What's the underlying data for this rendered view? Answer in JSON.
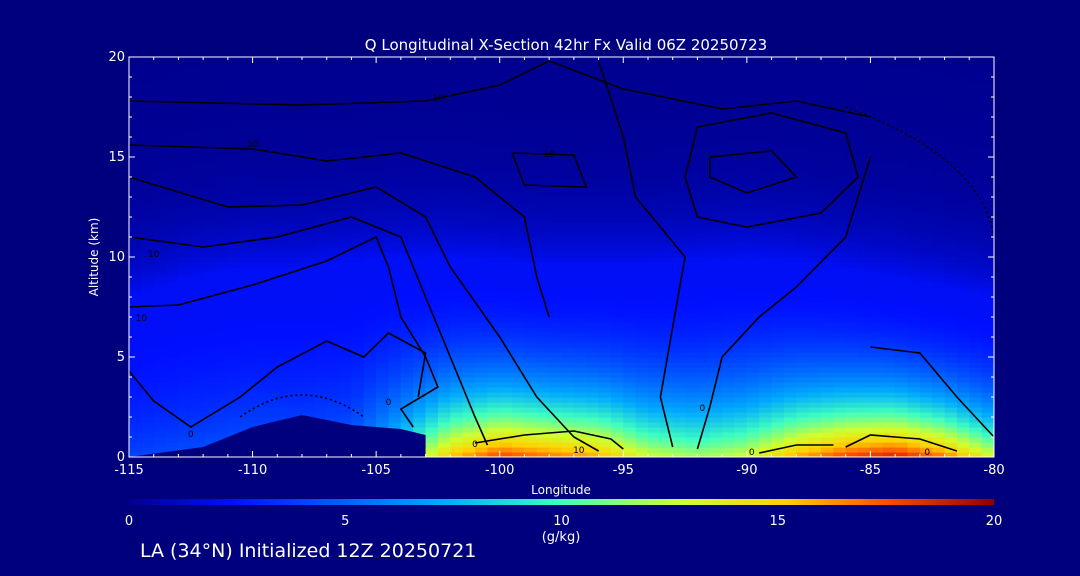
{
  "chart_data": {
    "type": "heatmap",
    "title": "Q Longitudinal X-Section 42hr  Fx Valid 06Z 20250723",
    "xlabel": "Longitude",
    "ylabel": "Altitude (km)",
    "xlim": [
      -115,
      -80
    ],
    "ylim": [
      0,
      20
    ],
    "x_ticks": [
      "-115",
      "-110",
      "-105",
      "-100",
      "-95",
      "-90",
      "-85",
      "-80"
    ],
    "y_ticks": [
      "0",
      "5",
      "10",
      "15",
      "20"
    ],
    "field": "specific humidity (filled) with relative-humidity-style contour lines",
    "max_q_by_longitude": {
      "x": [
        -115,
        -112.5,
        -110,
        -108,
        -106,
        -104,
        -102,
        -100,
        -98,
        -96,
        -94,
        -92,
        -90,
        -88,
        -86,
        -84,
        -82,
        -80
      ],
      "q_surface": [
        4,
        4.5,
        5,
        5,
        5.5,
        10,
        15.5,
        18,
        17,
        16,
        13,
        12,
        13,
        16,
        18,
        19,
        17,
        13
      ],
      "moist_layer_top_km": [
        8,
        9,
        9.5,
        9.5,
        9.8,
        10,
        10,
        9.8,
        9.6,
        9.6,
        9.6,
        9.8,
        10,
        9.8,
        9.4,
        9,
        8.5,
        8
      ]
    },
    "terrain_km": {
      "x": [
        -115,
        -112,
        -110,
        -108,
        -106,
        -104,
        -103
      ],
      "z": [
        0,
        0.5,
        1.5,
        2.1,
        1.6,
        1.4,
        1.1
      ]
    },
    "contour_labels": [
      {
        "text": "10",
        "x": -102.5,
        "y": 17.8
      },
      {
        "text": "10",
        "x": -110,
        "y": 15.5
      },
      {
        "text": "10",
        "x": -98,
        "y": 15
      },
      {
        "text": "10",
        "x": -114,
        "y": 10
      },
      {
        "text": "10",
        "x": -114.5,
        "y": 6.8
      },
      {
        "text": "0",
        "x": -104.5,
        "y": 2.6
      },
      {
        "text": "0",
        "x": -112.5,
        "y": 1
      },
      {
        "text": "0",
        "x": -101,
        "y": 0.5
      },
      {
        "text": "10",
        "x": -96.8,
        "y": 0.2
      },
      {
        "text": "0",
        "x": -91.8,
        "y": 2.3
      },
      {
        "text": "0",
        "x": -89.8,
        "y": 0.1
      },
      {
        "text": "0",
        "x": -82.7,
        "y": 0.1
      }
    ],
    "colorbar": {
      "ticks": [
        "0",
        "5",
        "10",
        "15",
        "20"
      ],
      "label": "(g/kg)",
      "range": [
        0,
        20
      ]
    }
  },
  "footer": "LA (34°N) Initialized 12Z 20250721",
  "colors": {
    "background": "#00007f",
    "contour": "#000000",
    "text": "#ffffff"
  }
}
